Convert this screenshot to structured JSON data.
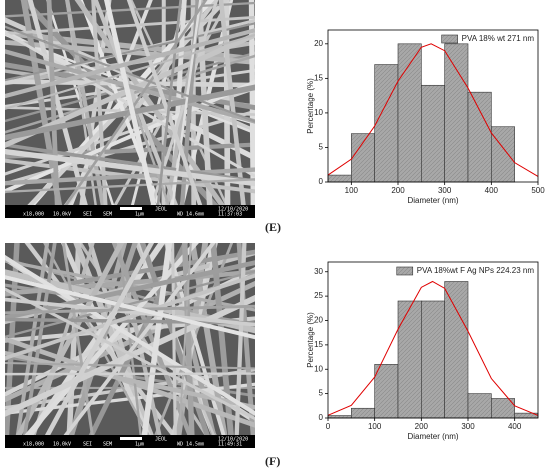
{
  "chart_data": [
    {
      "type": "histogram",
      "label": "(E)",
      "xlabel": "Diameter (nm)",
      "ylabel": "Percentage (%)",
      "bins": [
        50,
        100,
        150,
        200,
        250,
        300,
        350,
        400,
        450
      ],
      "series": [
        {
          "name": "PVA 18% wt 271 nm",
          "color": "#a8a8a8",
          "values": [
            1,
            7,
            17,
            20,
            14,
            20,
            13,
            8
          ]
        }
      ],
      "fit": {
        "color": "#e00000",
        "x": [
          50,
          100,
          150,
          200,
          250,
          271,
          300,
          350,
          400,
          450,
          500
        ],
        "values": [
          1.0,
          3.3,
          8.1,
          14.6,
          19.5,
          20,
          19.0,
          13.6,
          7.1,
          2.8,
          0.8
        ]
      },
      "xlim": [
        50,
        500
      ],
      "xticks": [
        100,
        200,
        300,
        400,
        500
      ],
      "ylim": [
        0,
        22
      ],
      "yticks": [
        0,
        5,
        10,
        15,
        20
      ]
    },
    {
      "type": "histogram",
      "label": "(F)",
      "xlabel": "Diameter (nm)",
      "ylabel": "Percentage (%)",
      "bins": [
        0,
        50,
        100,
        150,
        200,
        250,
        300,
        350,
        400,
        450
      ],
      "series": [
        {
          "name": "PVA 18%wt F Ag NPs 224.23 nm",
          "color": "#a8a8a8",
          "values": [
            0.5,
            2,
            11,
            24,
            24,
            28,
            5,
            4,
            1
          ]
        }
      ],
      "fit": {
        "color": "#e00000",
        "x": [
          0,
          50,
          100,
          150,
          200,
          224,
          250,
          300,
          350,
          400,
          450
        ],
        "values": [
          0.55,
          2.6,
          8.4,
          18.2,
          26.8,
          28,
          26.6,
          17.8,
          8.1,
          2.5,
          0.52
        ]
      },
      "xlim": [
        0,
        450
      ],
      "xticks": [
        0,
        100,
        200,
        300,
        400
      ],
      "ylim": [
        0,
        32
      ],
      "yticks": [
        0,
        5,
        10,
        15,
        20,
        25,
        30
      ]
    }
  ],
  "images": [
    {
      "info": [
        "x18,000",
        "10.0kV",
        "SEI",
        "SEM",
        "1μm",
        "JEOL",
        "WD 14.6mm",
        "12/10/2020",
        "11:37:03"
      ]
    },
    {
      "info": [
        "x18,000",
        "10.0kV",
        "SEI",
        "SEM",
        "1μm",
        "JEOL",
        "WD 14.5mm",
        "12/10/2020",
        "11:49:31"
      ]
    }
  ]
}
